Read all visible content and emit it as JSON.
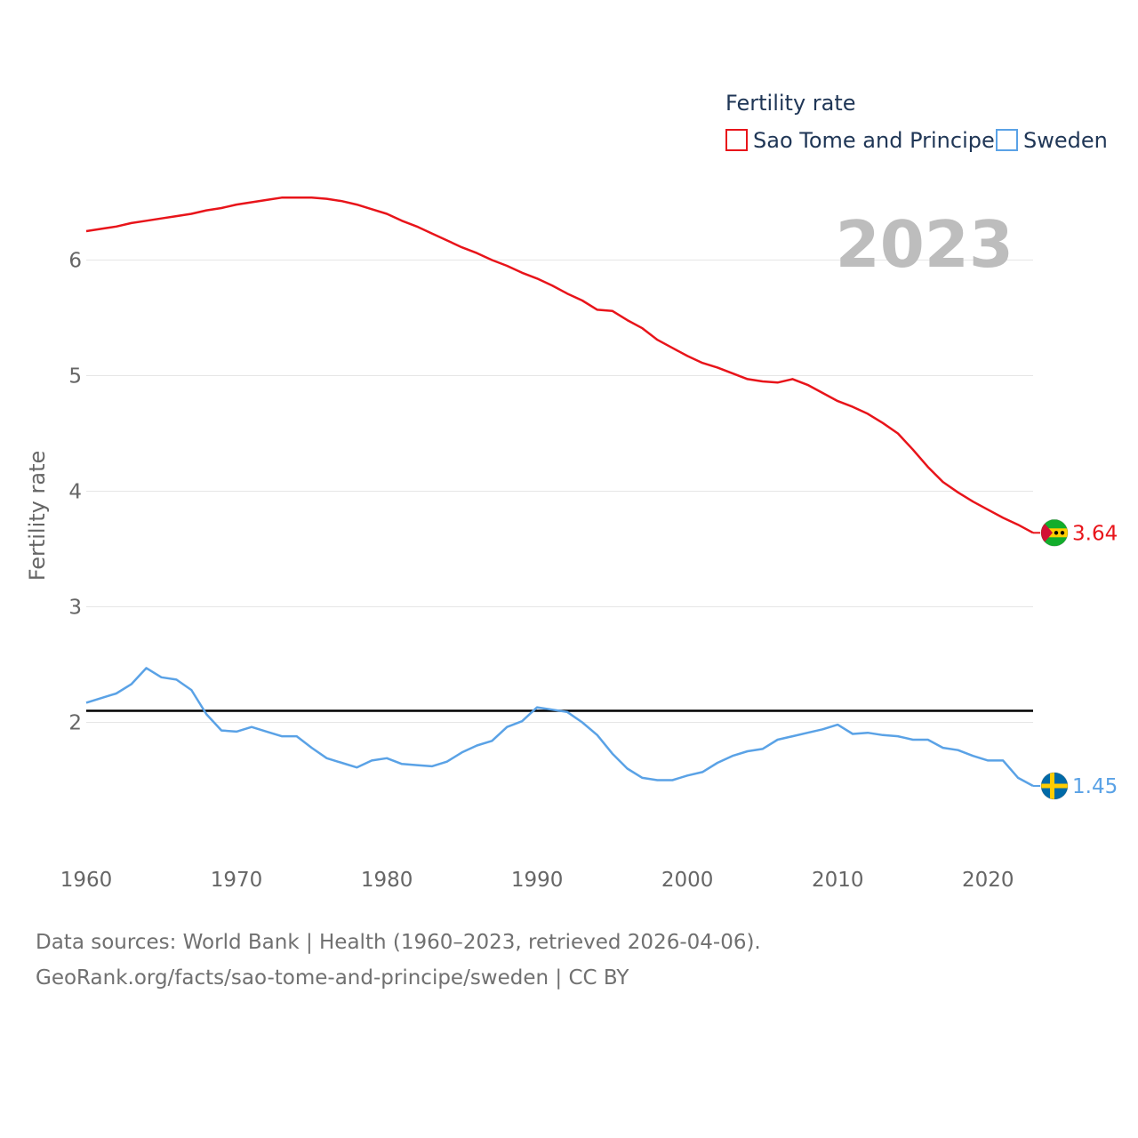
{
  "chart_data": {
    "type": "line",
    "title": "Fertility rate",
    "ylabel": "Fertility rate",
    "xlabel": "",
    "year_label": "2023",
    "x": [
      1960,
      1961,
      1962,
      1963,
      1964,
      1965,
      1966,
      1967,
      1968,
      1969,
      1970,
      1971,
      1972,
      1973,
      1974,
      1975,
      1976,
      1977,
      1978,
      1979,
      1980,
      1981,
      1982,
      1983,
      1984,
      1985,
      1986,
      1987,
      1988,
      1989,
      1990,
      1991,
      1992,
      1993,
      1994,
      1995,
      1996,
      1997,
      1998,
      1999,
      2000,
      2001,
      2002,
      2003,
      2004,
      2005,
      2006,
      2007,
      2008,
      2009,
      2010,
      2011,
      2012,
      2013,
      2014,
      2015,
      2016,
      2017,
      2018,
      2019,
      2020,
      2021,
      2022,
      2023
    ],
    "xlim": [
      1960,
      2023
    ],
    "ylim": [
      1.0,
      6.8
    ],
    "x_ticks": [
      1960,
      1970,
      1980,
      1990,
      2000,
      2010,
      2020
    ],
    "x_tick_labels": [
      "1960",
      "1970",
      "1980",
      "1990",
      "2000",
      "2010",
      "2020"
    ],
    "y_ticks": [
      2,
      3,
      4,
      5,
      6
    ],
    "y_tick_labels": [
      "2",
      "3",
      "4",
      "5",
      "6"
    ],
    "reference_line": 2.1,
    "series": [
      {
        "name": "Sao Tome and Principe",
        "color": "#e8141a",
        "end_label": "3.64",
        "flag_icon": "sao-tome-flag-icon",
        "values": [
          6.25,
          6.27,
          6.29,
          6.32,
          6.34,
          6.36,
          6.38,
          6.4,
          6.43,
          6.45,
          6.48,
          6.5,
          6.52,
          6.54,
          6.54,
          6.54,
          6.53,
          6.51,
          6.48,
          6.44,
          6.4,
          6.34,
          6.29,
          6.23,
          6.17,
          6.11,
          6.06,
          6.0,
          5.95,
          5.89,
          5.84,
          5.78,
          5.71,
          5.65,
          5.57,
          5.56,
          5.48,
          5.41,
          5.31,
          5.24,
          5.17,
          5.11,
          5.07,
          5.02,
          4.97,
          4.95,
          4.94,
          4.97,
          4.92,
          4.85,
          4.78,
          4.73,
          4.67,
          4.59,
          4.5,
          4.36,
          4.21,
          4.08,
          3.99,
          3.91,
          3.84,
          3.77,
          3.71,
          3.64
        ]
      },
      {
        "name": "Sweden",
        "color": "#5aa2e6",
        "end_label": "1.45",
        "flag_icon": "sweden-flag-icon",
        "values": [
          2.17,
          2.21,
          2.25,
          2.33,
          2.47,
          2.39,
          2.37,
          2.28,
          2.07,
          1.93,
          1.92,
          1.96,
          1.92,
          1.88,
          1.88,
          1.78,
          1.69,
          1.65,
          1.61,
          1.67,
          1.69,
          1.64,
          1.63,
          1.62,
          1.66,
          1.74,
          1.8,
          1.84,
          1.96,
          2.01,
          2.13,
          2.11,
          2.09,
          2.0,
          1.89,
          1.73,
          1.6,
          1.52,
          1.5,
          1.5,
          1.54,
          1.57,
          1.65,
          1.71,
          1.75,
          1.77,
          1.85,
          1.88,
          1.91,
          1.94,
          1.98,
          1.9,
          1.91,
          1.89,
          1.88,
          1.85,
          1.85,
          1.78,
          1.76,
          1.71,
          1.67,
          1.67,
          1.52,
          1.45
        ]
      }
    ]
  },
  "source": {
    "line1": "Data sources: World Bank | Health (1960–2023, retrieved 2026-04-06).",
    "line2": "GeoRank.org/facts/sao-tome-and-principe/sweden | CC BY"
  }
}
